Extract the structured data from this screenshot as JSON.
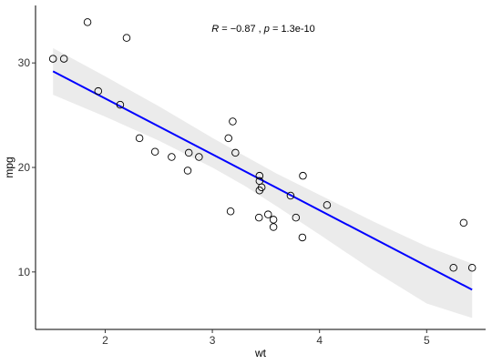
{
  "chart_data": {
    "type": "scatter",
    "title": "",
    "xlabel": "wt",
    "ylabel": "mpg",
    "xlim": [
      1.35,
      5.55
    ],
    "ylim": [
      4.5,
      35.5
    ],
    "x_ticks": [
      2,
      3,
      4,
      5
    ],
    "x_tick_labels": [
      "2",
      "3",
      "4",
      "5"
    ],
    "y_ticks": [
      10,
      20,
      30
    ],
    "y_tick_labels": [
      "10",
      "20",
      "30"
    ],
    "grid": false,
    "annotation": {
      "r_label": "R",
      "r_value": "−0.87",
      "p_label": "p",
      "p_value": "1.3e-10"
    },
    "points": [
      {
        "x": 1.513,
        "y": 30.4
      },
      {
        "x": 1.615,
        "y": 30.4
      },
      {
        "x": 1.835,
        "y": 33.9
      },
      {
        "x": 1.935,
        "y": 27.3
      },
      {
        "x": 2.14,
        "y": 26.0
      },
      {
        "x": 2.2,
        "y": 32.4
      },
      {
        "x": 2.32,
        "y": 22.8
      },
      {
        "x": 2.465,
        "y": 21.5
      },
      {
        "x": 2.62,
        "y": 21.0
      },
      {
        "x": 2.77,
        "y": 19.7
      },
      {
        "x": 2.78,
        "y": 21.4
      },
      {
        "x": 2.875,
        "y": 21.0
      },
      {
        "x": 3.15,
        "y": 22.8
      },
      {
        "x": 3.17,
        "y": 15.8
      },
      {
        "x": 3.19,
        "y": 24.4
      },
      {
        "x": 3.215,
        "y": 21.4
      },
      {
        "x": 3.435,
        "y": 15.2
      },
      {
        "x": 3.44,
        "y": 18.7
      },
      {
        "x": 3.44,
        "y": 19.2
      },
      {
        "x": 3.44,
        "y": 17.8
      },
      {
        "x": 3.46,
        "y": 18.1
      },
      {
        "x": 3.52,
        "y": 15.5
      },
      {
        "x": 3.57,
        "y": 14.3
      },
      {
        "x": 3.57,
        "y": 15.0
      },
      {
        "x": 3.73,
        "y": 17.3
      },
      {
        "x": 3.78,
        "y": 15.2
      },
      {
        "x": 3.84,
        "y": 13.3
      },
      {
        "x": 3.845,
        "y": 19.2
      },
      {
        "x": 4.07,
        "y": 16.4
      },
      {
        "x": 5.25,
        "y": 10.4
      },
      {
        "x": 5.345,
        "y": 14.7
      },
      {
        "x": 5.424,
        "y": 10.4
      }
    ],
    "fit_line": {
      "type": "linear",
      "intercept": 37.285,
      "slope": -5.344,
      "x_range": [
        1.513,
        5.424
      ],
      "color": "#0000FF"
    },
    "confidence_band": {
      "level": 0.95,
      "color": "#EBEBEB",
      "lower": [
        {
          "x": 1.513,
          "y": 26.96
        },
        {
          "x": 2.0,
          "y": 24.86
        },
        {
          "x": 2.5,
          "y": 22.57
        },
        {
          "x": 3.0,
          "y": 19.99
        },
        {
          "x": 3.3,
          "y": 18.25
        },
        {
          "x": 3.6,
          "y": 16.29
        },
        {
          "x": 4.0,
          "y": 13.57
        },
        {
          "x": 4.5,
          "y": 10.13
        },
        {
          "x": 5.0,
          "y": 6.98
        },
        {
          "x": 5.424,
          "y": 5.6
        }
      ],
      "upper": [
        {
          "x": 1.513,
          "y": 31.42
        },
        {
          "x": 2.0,
          "y": 28.72
        },
        {
          "x": 2.5,
          "y": 25.86
        },
        {
          "x": 3.0,
          "y": 22.83
        },
        {
          "x": 3.3,
          "y": 21.11
        },
        {
          "x": 3.6,
          "y": 19.42
        },
        {
          "x": 4.0,
          "y": 17.38
        },
        {
          "x": 4.5,
          "y": 14.84
        },
        {
          "x": 5.0,
          "y": 12.44
        },
        {
          "x": 5.424,
          "y": 10.8
        }
      ]
    },
    "point_style": {
      "stroke": "#000000",
      "fill": "none"
    }
  }
}
